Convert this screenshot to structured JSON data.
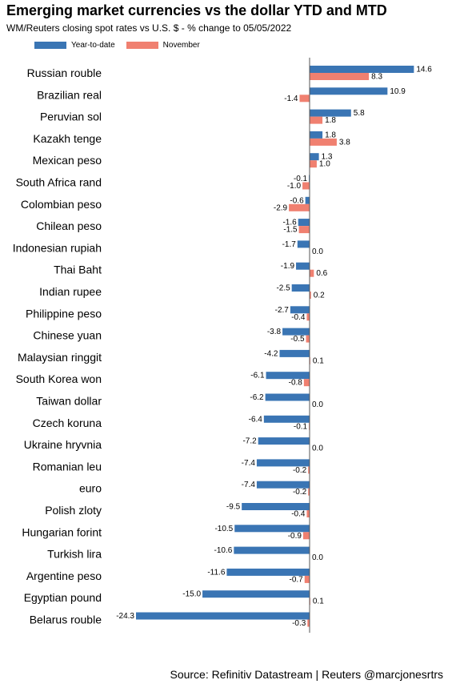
{
  "chart_data": {
    "type": "bar",
    "orientation": "horizontal",
    "title": "Emerging market currencies vs the dollar YTD and MTD",
    "subtitle": "WM/Reuters closing spot rates vs U.S. $ - % change to 05/05/2022",
    "source": "Source: Refinitiv Datastream | Reuters @marcjonesrtrs",
    "legend_position": "top-left",
    "grid": false,
    "xlim": [
      -24.3,
      14.6
    ],
    "categories": [
      "Russian rouble",
      "Brazilian real",
      "Peruvian sol",
      "Kazakh tenge",
      "Mexican peso",
      "South Africa rand",
      "Colombian peso",
      "Chilean peso",
      "Indonesian rupiah",
      "Thai Baht",
      "Indian rupee",
      "Philippine peso",
      "Chinese yuan",
      "Malaysian ringgit",
      "South Korea won",
      "Taiwan dollar",
      "Czech koruna",
      "Ukraine hryvnia",
      "Romanian leu",
      "euro",
      "Polish zloty",
      "Hungarian forint",
      "Turkish lira",
      "Argentine peso",
      "Egyptian pound",
      "Belarus rouble"
    ],
    "series": [
      {
        "name": "Year-to-date",
        "color": "#3a75b4",
        "values": [
          14.6,
          10.9,
          5.8,
          1.8,
          1.3,
          -0.1,
          -0.6,
          -1.6,
          -1.7,
          -1.9,
          -2.5,
          -2.7,
          -3.8,
          -4.2,
          -6.1,
          -6.2,
          -6.4,
          -7.2,
          -7.4,
          -7.4,
          -9.5,
          -10.5,
          -10.6,
          -11.6,
          -15.0,
          -24.3
        ],
        "labels": [
          "14.6",
          "10.9",
          "5.8",
          "1.8",
          "1.3",
          "-0.1",
          "-0.6",
          "-1.6",
          "-1.7",
          "-1.9",
          "-2.5",
          "-2.7",
          "-3.8",
          "-4.2",
          "-6.1",
          "-6.2",
          "-6.4",
          "-7.2",
          "-7.4",
          "-7.4",
          "-9.5",
          "-10.5",
          "-10.6",
          "-11.6",
          "-15.0",
          "-24.3"
        ]
      },
      {
        "name": "November",
        "color": "#f08070",
        "values": [
          8.3,
          -1.4,
          1.8,
          3.8,
          1.0,
          -1.0,
          -2.9,
          -1.5,
          0.0,
          0.6,
          0.2,
          -0.4,
          -0.5,
          0.1,
          -0.8,
          0.0,
          -0.1,
          0.0,
          -0.2,
          -0.2,
          -0.4,
          -0.9,
          0.0,
          -0.7,
          0.1,
          -0.3
        ],
        "labels": [
          "8.3",
          "-1.4",
          "1.8",
          "3.8",
          "1.0",
          "-1.0",
          "-2.9",
          "-1.5",
          "0.0",
          "0.6",
          "0.2",
          "-0.4",
          "-0.5",
          "0.1",
          "-0.8",
          "0.0",
          "-0.1",
          "0.0",
          "-0.2",
          "-0.2",
          "-0.4",
          "-0.9",
          "0.0",
          "-0.7",
          "0.1",
          "-0.3"
        ]
      }
    ]
  }
}
